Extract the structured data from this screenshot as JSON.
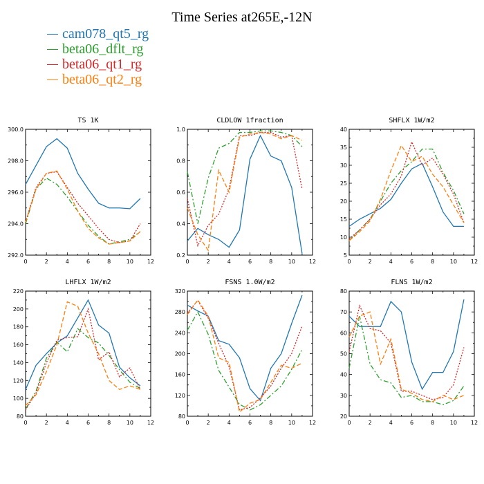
{
  "title": "Time Series at265E,-12N",
  "colors": {
    "cam078_qt5_rg": "#1f77b4",
    "beta06_dflt_rg": "#2ca02c",
    "beta06_qt1_rg": "#d62728",
    "beta06_qt2_rg": "#ff7f0e"
  },
  "legend": [
    {
      "name": "cam078_qt5_rg",
      "color": "#1f77b4"
    },
    {
      "name": "beta06_dflt_rg",
      "color": "#2ca02c"
    },
    {
      "name": "beta06_qt1_rg",
      "color": "#d62728"
    },
    {
      "name": "beta06_qt2_rg",
      "color": "#ff7f0e"
    }
  ],
  "chart_data": [
    {
      "type": "line",
      "title": "TS 1K",
      "xlim": [
        0,
        12
      ],
      "ylim": [
        292,
        300
      ],
      "xticks": [
        0,
        2,
        4,
        6,
        8,
        10,
        12
      ],
      "yticks": [
        292,
        294,
        296,
        298,
        300
      ],
      "ytick_labels": [
        "292.0",
        "294.0",
        "296.0",
        "298.0",
        "300.0"
      ],
      "x": [
        0,
        1,
        2,
        3,
        4,
        5,
        6,
        7,
        8,
        9,
        10,
        11
      ],
      "series": [
        {
          "name": "cam078_qt5_rg",
          "style": "solid",
          "values": [
            296.5,
            297.7,
            298.9,
            299.4,
            298.8,
            297.2,
            296.2,
            295.3,
            295.0,
            295.0,
            294.95,
            295.6
          ]
        },
        {
          "name": "beta06_dflt_rg",
          "style": "dashdot",
          "values": [
            294.0,
            296.2,
            296.9,
            296.5,
            295.7,
            294.8,
            293.9,
            293.2,
            292.7,
            292.85,
            293.0,
            293.5
          ]
        },
        {
          "name": "beta06_qt1_rg",
          "style": "dotted",
          "values": [
            294.1,
            296.3,
            297.2,
            297.3,
            296.3,
            295.3,
            294.5,
            293.7,
            293.0,
            292.8,
            292.9,
            294.0
          ]
        },
        {
          "name": "beta06_qt2_rg",
          "style": "dashed",
          "values": [
            294.1,
            296.2,
            297.2,
            297.35,
            296.2,
            294.8,
            293.7,
            293.1,
            292.7,
            292.8,
            292.9,
            293.5
          ]
        }
      ]
    },
    {
      "type": "line",
      "title": "CLDLOW 1fraction",
      "xlim": [
        0,
        12
      ],
      "ylim": [
        0.2,
        1.0
      ],
      "xticks": [
        0,
        2,
        4,
        6,
        8,
        10,
        12
      ],
      "yticks": [
        0.2,
        0.4,
        0.6,
        0.8,
        1.0
      ],
      "ytick_labels": [
        "0.2",
        "0.4",
        "0.6",
        "0.8",
        "1.0"
      ],
      "x": [
        0,
        1,
        2,
        3,
        4,
        5,
        6,
        7,
        8,
        9,
        10,
        11
      ],
      "series": [
        {
          "name": "cam078_qt5_rg",
          "style": "solid",
          "values": [
            0.29,
            0.37,
            0.33,
            0.3,
            0.25,
            0.36,
            0.81,
            0.96,
            0.83,
            0.8,
            0.63,
            0.21
          ]
        },
        {
          "name": "beta06_dflt_rg",
          "style": "dashdot",
          "values": [
            0.73,
            0.4,
            0.69,
            0.88,
            0.91,
            0.98,
            0.98,
            0.99,
            0.99,
            0.98,
            0.96,
            0.89
          ]
        },
        {
          "name": "beta06_qt1_rg",
          "style": "dotted",
          "values": [
            0.56,
            0.26,
            0.39,
            0.46,
            0.62,
            0.96,
            0.96,
            0.98,
            0.98,
            0.95,
            0.96,
            0.62
          ]
        },
        {
          "name": "beta06_qt2_rg",
          "style": "dashed",
          "values": [
            0.5,
            0.33,
            0.23,
            0.74,
            0.6,
            0.95,
            0.97,
            0.98,
            0.97,
            0.94,
            0.96,
            0.93
          ]
        }
      ]
    },
    {
      "type": "line",
      "title": "SHFLX 1W/m2",
      "xlim": [
        0,
        12
      ],
      "ylim": [
        5,
        40
      ],
      "xticks": [
        0,
        2,
        4,
        6,
        8,
        10,
        12
      ],
      "yticks": [
        5,
        10,
        15,
        20,
        25,
        30,
        35,
        40
      ],
      "ytick_labels": [
        "5",
        "10",
        "15",
        "20",
        "25",
        "30",
        "35",
        "40"
      ],
      "x": [
        0,
        1,
        2,
        3,
        4,
        5,
        6,
        7,
        8,
        9,
        10,
        11
      ],
      "series": [
        {
          "name": "cam078_qt5_rg",
          "style": "solid",
          "values": [
            13,
            15,
            16.5,
            18,
            20.5,
            25,
            29,
            30.5,
            24,
            17,
            13,
            13
          ]
        },
        {
          "name": "beta06_dflt_rg",
          "style": "dashdot",
          "values": [
            9,
            12,
            15,
            20,
            25,
            28.5,
            31,
            34.5,
            34.5,
            28,
            23,
            16.5
          ]
        },
        {
          "name": "beta06_qt1_rg",
          "style": "dotted",
          "values": [
            9.5,
            12,
            15,
            19,
            22,
            27,
            36.5,
            30,
            32,
            27.5,
            22,
            14
          ]
        },
        {
          "name": "beta06_qt2_rg",
          "style": "dashed",
          "values": [
            9,
            11.5,
            14.5,
            20.5,
            28.5,
            35.5,
            31,
            32.5,
            27.5,
            24,
            19,
            14
          ]
        }
      ]
    },
    {
      "type": "line",
      "title": "LHFLX 1W/m2",
      "xlim": [
        0,
        12
      ],
      "ylim": [
        80,
        220
      ],
      "xticks": [
        0,
        2,
        4,
        6,
        8,
        10,
        12
      ],
      "yticks": [
        80,
        100,
        120,
        140,
        160,
        180,
        200,
        220
      ],
      "ytick_labels": [
        "80",
        "100",
        "120",
        "140",
        "160",
        "180",
        "200",
        "220"
      ],
      "x": [
        0,
        1,
        2,
        3,
        4,
        5,
        6,
        7,
        8,
        9,
        10,
        11
      ],
      "series": [
        {
          "name": "cam078_qt5_rg",
          "style": "solid",
          "values": [
            110,
            137,
            150,
            162,
            170,
            190,
            210,
            182,
            173,
            135,
            123,
            114
          ]
        },
        {
          "name": "beta06_dflt_rg",
          "style": "dashdot",
          "values": [
            88,
            108,
            145,
            163,
            152,
            178,
            168,
            162,
            148,
            132,
            118,
            111
          ]
        },
        {
          "name": "beta06_qt1_rg",
          "style": "dotted",
          "values": [
            87,
            106,
            140,
            165,
            168,
            169,
            200,
            143,
            152,
            124,
            134,
            110
          ]
        },
        {
          "name": "beta06_qt2_rg",
          "style": "dashed",
          "values": [
            92,
            104,
            130,
            160,
            208,
            203,
            173,
            150,
            120,
            110,
            114,
            110
          ]
        }
      ]
    },
    {
      "type": "line",
      "title": "FSNS 1.0W/m2",
      "xlim": [
        0,
        12
      ],
      "ylim": [
        80,
        320
      ],
      "xticks": [
        0,
        2,
        4,
        6,
        8,
        10,
        12
      ],
      "yticks": [
        80,
        120,
        160,
        200,
        240,
        280,
        320
      ],
      "ytick_labels": [
        "80",
        "120",
        "160",
        "200",
        "240",
        "280",
        "320"
      ],
      "x": [
        0,
        1,
        2,
        3,
        4,
        5,
        6,
        7,
        8,
        9,
        10,
        11
      ],
      "series": [
        {
          "name": "cam078_qt5_rg",
          "style": "solid",
          "values": [
            293,
            282,
            272,
            225,
            218,
            192,
            133,
            110,
            172,
            200,
            258,
            312
          ]
        },
        {
          "name": "beta06_dflt_rg",
          "style": "dashdot",
          "values": [
            245,
            280,
            237,
            168,
            136,
            103,
            92,
            102,
            120,
            138,
            170,
            208
          ]
        },
        {
          "name": "beta06_qt1_rg",
          "style": "dotted",
          "values": [
            278,
            302,
            268,
            220,
            175,
            92,
            97,
            115,
            138,
            172,
            200,
            253
          ]
        },
        {
          "name": "beta06_qt2_rg",
          "style": "dashed",
          "values": [
            275,
            303,
            272,
            192,
            183,
            88,
            105,
            112,
            145,
            178,
            172,
            182
          ]
        }
      ]
    },
    {
      "type": "line",
      "title": "FLNS 1W/m2",
      "xlim": [
        0,
        12
      ],
      "ylim": [
        20,
        80
      ],
      "xticks": [
        0,
        2,
        4,
        6,
        8,
        10,
        12
      ],
      "yticks": [
        20,
        30,
        40,
        50,
        60,
        70,
        80
      ],
      "ytick_labels": [
        "20",
        "30",
        "40",
        "50",
        "60",
        "70",
        "80"
      ],
      "x": [
        0,
        1,
        2,
        3,
        4,
        5,
        6,
        7,
        8,
        9,
        10,
        11
      ],
      "series": [
        {
          "name": "cam078_qt5_rg",
          "style": "solid",
          "values": [
            68,
            63,
            63,
            63,
            75,
            70,
            46,
            33,
            41,
            41,
            51,
            76
          ]
        },
        {
          "name": "beta06_dflt_rg",
          "style": "dashdot",
          "values": [
            43,
            68,
            45,
            37.5,
            36,
            29,
            30,
            27,
            27,
            25.5,
            27.5,
            34.5
          ]
        },
        {
          "name": "beta06_qt1_rg",
          "style": "dotted",
          "values": [
            51,
            73,
            62,
            61,
            55,
            32,
            32,
            30,
            28,
            29,
            35,
            53
          ]
        },
        {
          "name": "beta06_qt2_rg",
          "style": "dashed",
          "values": [
            58,
            68,
            70,
            45,
            57,
            33,
            31,
            28,
            27,
            30,
            28,
            30
          ]
        }
      ]
    }
  ]
}
